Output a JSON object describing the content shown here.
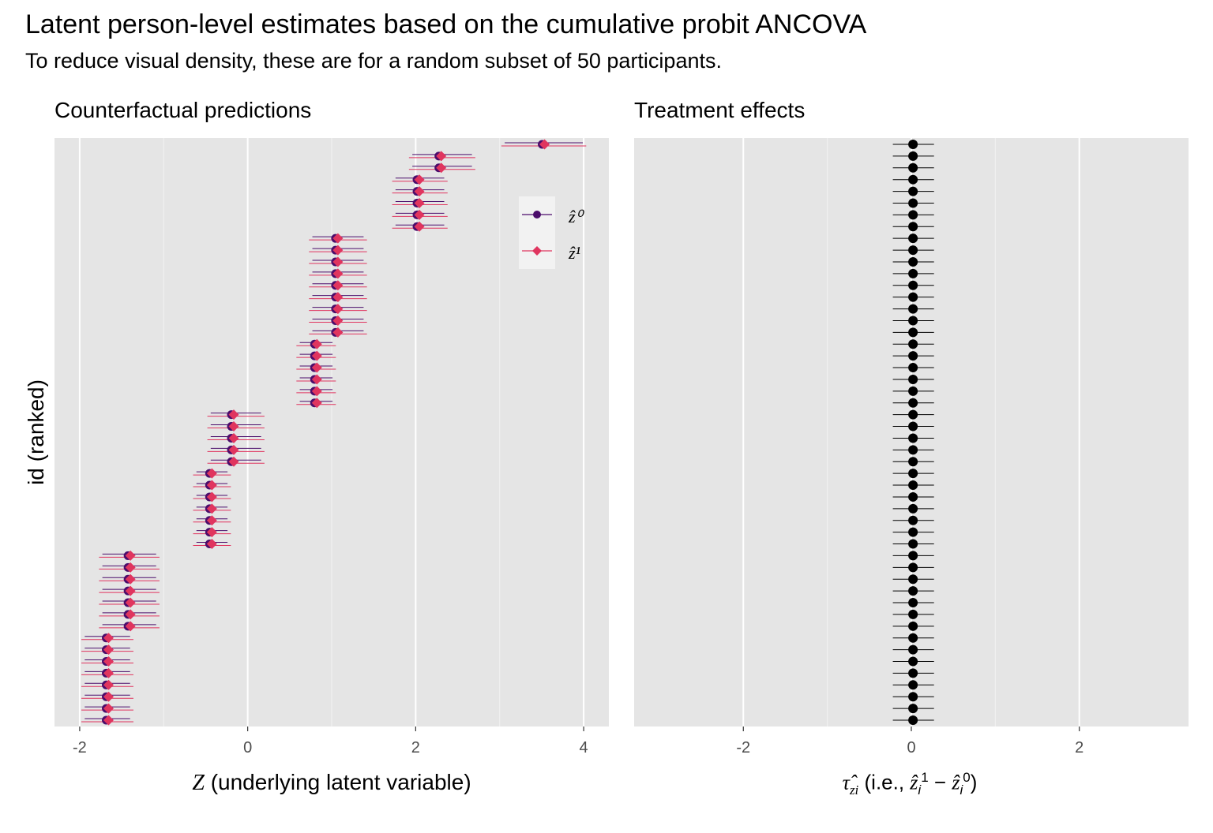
{
  "title": "Latent person-level estimates based on the cumulative probit ANCOVA",
  "subtitle": "To reduce visual density, these are for a random subset of 50 participants.",
  "ylabel": "id (ranked)",
  "colors": {
    "z0": "#4b0d6b",
    "z1": "#e0355f",
    "panel_bg": "#e5e5e5",
    "effect": "#000000"
  },
  "chart_data": [
    {
      "type": "scatter",
      "panel_title": "Counterfactual predictions",
      "xlabel": "Z (underlying latent variable)",
      "xlim": [
        -2.3,
        4.3
      ],
      "xticks": [
        -2,
        0,
        2,
        4
      ],
      "legend": {
        "position": "top-right",
        "entries": [
          "ẑ⁰",
          "ẑ¹"
        ]
      },
      "groups": [
        {
          "count": 8,
          "estimate": -1.67,
          "ci": [
            -1.98,
            -1.36
          ]
        },
        {
          "count": 7,
          "estimate": -1.41,
          "ci": [
            -1.77,
            -1.05
          ]
        },
        {
          "count": 7,
          "estimate": -0.44,
          "ci": [
            -0.65,
            -0.2
          ]
        },
        {
          "count": 5,
          "estimate": -0.18,
          "ci": [
            -0.48,
            0.2
          ]
        },
        {
          "count": 6,
          "estimate": 0.81,
          "ci": [
            0.58,
            1.05
          ]
        },
        {
          "count": 9,
          "estimate": 1.06,
          "ci": [
            0.73,
            1.42
          ]
        },
        {
          "count": 5,
          "estimate": 2.03,
          "ci": [
            1.72,
            2.38
          ]
        },
        {
          "count": 2,
          "estimate": 2.29,
          "ci": [
            1.92,
            2.71
          ]
        },
        {
          "count": 1,
          "estimate": 3.52,
          "ci": [
            3.02,
            4.03
          ]
        }
      ]
    },
    {
      "type": "scatter",
      "panel_title": "Treatment effects",
      "xlabel": "τ̂zi (i.e., ẑi1 − ẑi0)",
      "xlim": [
        -3.3,
        3.3
      ],
      "xticks": [
        -2,
        0,
        2
      ],
      "n": 50,
      "estimate": 0.02,
      "ci": [
        -0.22,
        0.27
      ]
    }
  ]
}
